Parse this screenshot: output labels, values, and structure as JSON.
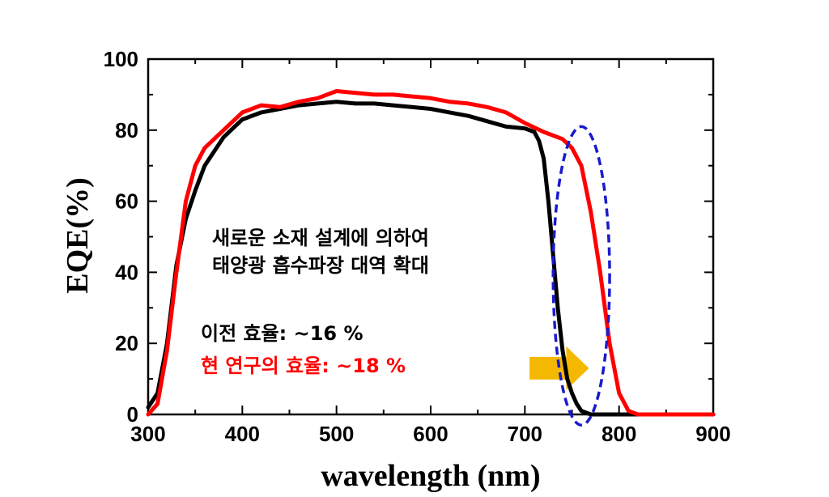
{
  "chart_data": {
    "type": "line",
    "title": "",
    "xlabel": "wavelength (nm)",
    "ylabel": "EQE(%)",
    "xlim": [
      300,
      900
    ],
    "ylim": [
      0,
      100
    ],
    "xticks": [
      300,
      400,
      500,
      600,
      700,
      800,
      900
    ],
    "yticks": [
      0,
      20,
      40,
      60,
      80,
      100
    ],
    "grid": false,
    "series": [
      {
        "name": "이전 효율: ~16 %",
        "color": "#000000",
        "points": [
          [
            300,
            2
          ],
          [
            310,
            6
          ],
          [
            320,
            20
          ],
          [
            330,
            42
          ],
          [
            340,
            55
          ],
          [
            350,
            63
          ],
          [
            360,
            70
          ],
          [
            380,
            78
          ],
          [
            400,
            83
          ],
          [
            420,
            85
          ],
          [
            440,
            86
          ],
          [
            460,
            87
          ],
          [
            480,
            87.5
          ],
          [
            500,
            88
          ],
          [
            520,
            87.5
          ],
          [
            540,
            87.5
          ],
          [
            560,
            87
          ],
          [
            580,
            86.5
          ],
          [
            600,
            86
          ],
          [
            620,
            85
          ],
          [
            640,
            84
          ],
          [
            660,
            82.5
          ],
          [
            680,
            81
          ],
          [
            700,
            80.5
          ],
          [
            710,
            79.5
          ],
          [
            715,
            77
          ],
          [
            720,
            72
          ],
          [
            725,
            60
          ],
          [
            730,
            45
          ],
          [
            735,
            30
          ],
          [
            740,
            18
          ],
          [
            745,
            10
          ],
          [
            750,
            6
          ],
          [
            755,
            3
          ],
          [
            760,
            1
          ],
          [
            770,
            0
          ],
          [
            900,
            0
          ]
        ]
      },
      {
        "name": "현 연구의 효율: ~18 %",
        "color": "#ff0000",
        "points": [
          [
            300,
            0
          ],
          [
            310,
            3
          ],
          [
            320,
            18
          ],
          [
            330,
            40
          ],
          [
            340,
            60
          ],
          [
            350,
            70
          ],
          [
            360,
            75
          ],
          [
            380,
            80
          ],
          [
            400,
            85
          ],
          [
            420,
            87
          ],
          [
            440,
            86.5
          ],
          [
            460,
            88
          ],
          [
            480,
            89
          ],
          [
            500,
            91
          ],
          [
            520,
            90.5
          ],
          [
            540,
            90
          ],
          [
            560,
            90
          ],
          [
            580,
            89.5
          ],
          [
            600,
            89
          ],
          [
            620,
            88
          ],
          [
            640,
            87.5
          ],
          [
            660,
            86.5
          ],
          [
            680,
            85
          ],
          [
            700,
            82
          ],
          [
            720,
            79.5
          ],
          [
            740,
            77.5
          ],
          [
            750,
            75
          ],
          [
            760,
            70
          ],
          [
            770,
            57
          ],
          [
            780,
            40
          ],
          [
            790,
            20
          ],
          [
            800,
            6
          ],
          [
            810,
            1
          ],
          [
            820,
            0
          ],
          [
            900,
            0
          ]
        ]
      }
    ],
    "annotations": {
      "line1": "새로운 소재 설계에 의하여",
      "line2": "태양광 흡수파장 대역 확대",
      "prev_eff": "이전 효율: ~16 %",
      "curr_eff": "현 연구의 효율: ~18 %"
    },
    "highlight": {
      "center_nm": 760,
      "center_pct": 39,
      "radius_nm": 30,
      "radius_pct": 42,
      "ellipse_color": "#1a1acc",
      "arrow_color": "#f5b800",
      "arrow_from_nm": 705,
      "arrow_to_nm": 768,
      "arrow_pct": 13
    }
  }
}
